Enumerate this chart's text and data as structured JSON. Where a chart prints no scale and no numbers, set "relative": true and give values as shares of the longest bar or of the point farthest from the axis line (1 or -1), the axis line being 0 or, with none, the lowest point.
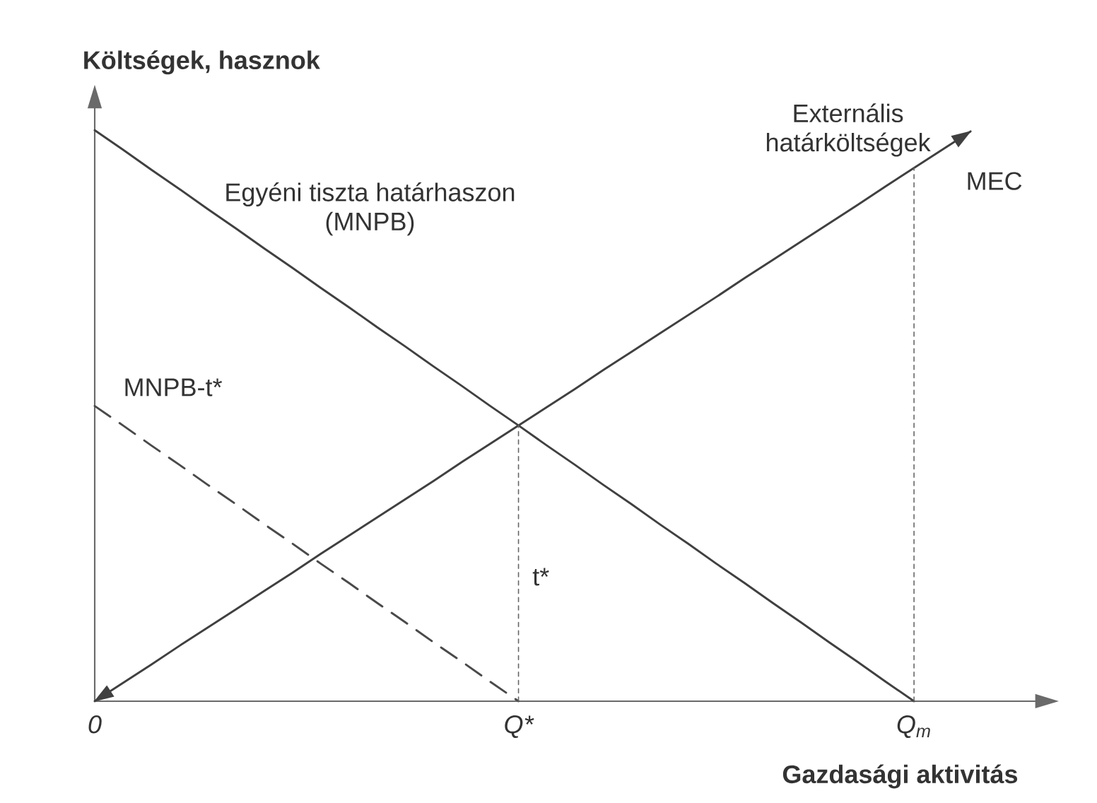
{
  "chart_data": {
    "type": "line",
    "relative": true,
    "xlabel": "Gazdasági aktivitás",
    "ylabel": "Költségek, hasznok",
    "categories": [
      "0",
      null,
      null,
      null,
      null,
      null,
      null,
      null,
      null,
      null,
      null,
      null,
      null,
      null,
      null,
      "Q*",
      null,
      null,
      null,
      null,
      null,
      null,
      null,
      null,
      null,
      null,
      null,
      null,
      null,
      "Q$_{m}$",
      null,
      null
    ],
    "series": [
      {
        "name": "Egyéni tiszta határhaszon (MNPB)",
        "color": "#404040",
        "line_style": "solid",
        "values": [
          1,
          0.966,
          0.931,
          0.897,
          0.862,
          0.828,
          0.793,
          0.759,
          0.724,
          0.69,
          0.655,
          0.621,
          0.586,
          0.552,
          0.517,
          0.483,
          0.448,
          0.414,
          0.379,
          0.345,
          0.31,
          0.276,
          0.241,
          0.207,
          0.172,
          0.138,
          0.103,
          0.069,
          0.034,
          0,
          null,
          null
        ]
      },
      {
        "name": "MNPB-t*",
        "color": "#4a4a4a",
        "line_style": "dashed",
        "values": [
          0.517,
          0.483,
          0.448,
          0.414,
          0.379,
          0.345,
          0.31,
          0.276,
          0.241,
          0.207,
          0.172,
          0.138,
          0.103,
          0.069,
          0.034,
          0,
          null,
          null,
          null,
          null,
          null,
          null,
          null,
          null,
          null,
          null,
          null,
          null,
          null,
          null,
          null,
          null
        ]
      },
      {
        "color": "#404040",
        "line_style": "solid",
        "values": [
          0,
          0.032,
          0.064,
          0.097,
          0.129,
          0.161,
          0.193,
          0.225,
          0.258,
          0.29,
          0.322,
          0.354,
          0.386,
          0.419,
          0.451,
          0.483,
          0.515,
          0.547,
          0.58,
          0.612,
          0.644,
          0.676,
          0.708,
          0.741,
          0.773,
          0.805,
          0.837,
          0.869,
          0.902,
          0.934,
          0.966,
          0.998
        ]
      },
      {
        "color": "#666666",
        "line_style": "dotted",
        "x": [
          "Q*",
          "Q*"
        ],
        "values": [
          0,
          0.483
        ]
      },
      {
        "color": "#666666",
        "line_style": "dotted",
        "x": [
          "Q$_{m}$",
          "Q$_{m}$"
        ],
        "values": [
          0,
          0.934
        ]
      }
    ],
    "annotations": [
      "Externális határköltségek",
      "t*",
      "MEC"
    ]
  }
}
